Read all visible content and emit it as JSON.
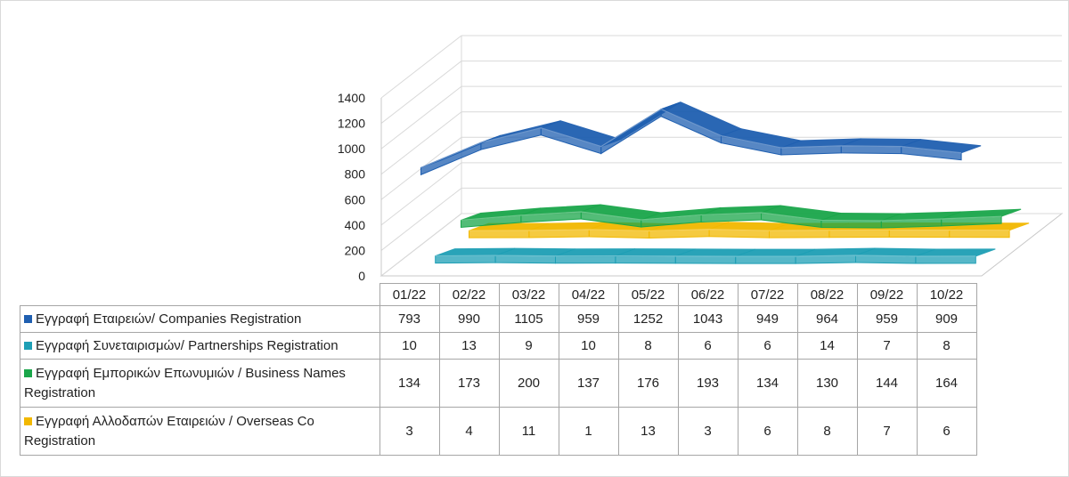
{
  "chart_data": {
    "type": "line",
    "categories": [
      "01/22",
      "02/22",
      "03/22",
      "04/22",
      "05/22",
      "06/22",
      "07/22",
      "08/22",
      "09/22",
      "10/22"
    ],
    "y_ticks": [
      "0",
      "200",
      "400",
      "600",
      "800",
      "1000",
      "1200",
      "1400"
    ],
    "ylim": [
      0,
      1400
    ],
    "grid": true,
    "legend_position": "table-bottom",
    "series": [
      {
        "name": "Εγγραφή Εταιρειών/ Companies Registration",
        "values": [
          793,
          990,
          1105,
          959,
          1252,
          1043,
          949,
          964,
          959,
          909
        ],
        "color": "#1f5fb0",
        "values_text": [
          "793",
          "990",
          "1105",
          "959",
          "1252",
          "1043",
          "949",
          "964",
          "959",
          "909"
        ]
      },
      {
        "name": "Εγγραφή Συνεταιρισμών/ Partnerships Registration",
        "values": [
          10,
          13,
          9,
          10,
          8,
          6,
          6,
          14,
          7,
          8
        ],
        "color": "#1e9fb5",
        "values_text": [
          "10",
          "13",
          "9",
          "10",
          "8",
          "6",
          "6",
          "14",
          "7",
          "8"
        ]
      },
      {
        "name": "Εγγραφή Εμπορικών Επωνυμιών / Business Names Registration",
        "values": [
          134,
          173,
          200,
          137,
          176,
          193,
          134,
          130,
          144,
          164
        ],
        "color": "#1aa64a",
        "values_text": [
          "134",
          "173",
          "200",
          "137",
          "176",
          "193",
          "134",
          "130",
          "144",
          "164"
        ]
      },
      {
        "name": "Εγγραφή Αλλοδαπών Εταιρειών / Overseas Co Registration",
        "values": [
          3,
          4,
          11,
          1,
          13,
          3,
          6,
          8,
          7,
          6
        ],
        "color": "#f2b800",
        "values_text": [
          "3",
          "4",
          "11",
          "1",
          "13",
          "3",
          "6",
          "8",
          "7",
          "6"
        ]
      }
    ]
  }
}
